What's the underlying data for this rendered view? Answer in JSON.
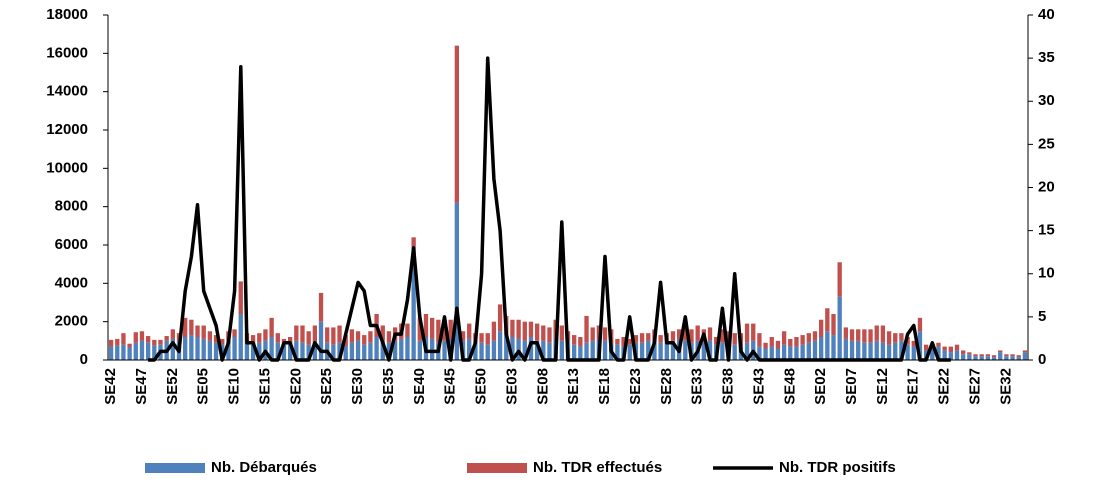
{
  "chart_data": {
    "type": "bar-line",
    "categories": [
      "SE42",
      null,
      null,
      null,
      null,
      "SE47",
      null,
      null,
      null,
      null,
      "SE52",
      null,
      null,
      null,
      null,
      "SE05",
      null,
      null,
      null,
      null,
      "SE10",
      null,
      null,
      null,
      null,
      "SE15",
      null,
      null,
      null,
      null,
      "SE20",
      null,
      null,
      null,
      null,
      "SE25",
      null,
      null,
      null,
      null,
      "SE30",
      null,
      null,
      null,
      null,
      "SE35",
      null,
      null,
      null,
      null,
      "SE40",
      null,
      null,
      null,
      null,
      "SE45",
      null,
      null,
      null,
      null,
      "SE50",
      null,
      null,
      null,
      null,
      "SE03",
      null,
      null,
      null,
      null,
      "SE08",
      null,
      null,
      null,
      null,
      "SE13",
      null,
      null,
      null,
      null,
      "SE18",
      null,
      null,
      null,
      null,
      "SE23",
      null,
      null,
      null,
      null,
      "SE28",
      null,
      null,
      null,
      null,
      "SE33",
      null,
      null,
      null,
      null,
      "SE38",
      null,
      null,
      null,
      null,
      "SE43",
      null,
      null,
      null,
      null,
      "SE48",
      null,
      null,
      null,
      null,
      "SE02",
      null,
      null,
      null,
      null,
      "SE07",
      null,
      null,
      null,
      null,
      "SE12",
      null,
      null,
      null,
      null,
      "SE17",
      null,
      null,
      null,
      null,
      "SE22",
      null,
      null,
      null,
      null,
      "SE27",
      null,
      null,
      null,
      null,
      "SE32",
      null,
      null,
      null
    ],
    "series": [
      {
        "name": "Nb. Débarqués",
        "color": "#4f81bd",
        "stack": true,
        "values": [
          700,
          750,
          800,
          650,
          900,
          1000,
          900,
          750,
          800,
          1000,
          1100,
          1000,
          1200,
          1300,
          1200,
          1100,
          1000,
          900,
          800,
          1000,
          1200,
          2400,
          900,
          800,
          900,
          1000,
          1200,
          900,
          800,
          800,
          1000,
          900,
          800,
          900,
          2000,
          900,
          800,
          900,
          700,
          900,
          1000,
          800,
          900,
          1200,
          1000,
          900,
          1000,
          1100,
          1200,
          5900,
          1000,
          1200,
          1100,
          900,
          1000,
          1100,
          8200,
          1000,
          1100,
          900,
          900,
          800,
          1000,
          1500,
          1300,
          1200,
          1100,
          1000,
          1200,
          1000,
          1000,
          900,
          1100,
          1000,
          1000,
          800,
          700,
          900,
          1000,
          1100,
          1000,
          900,
          800,
          700,
          800,
          900,
          900,
          1000,
          1000,
          900,
          900,
          1000,
          1100,
          1000,
          900,
          1000,
          900,
          1000,
          800,
          900,
          900,
          800,
          700,
          900,
          1000,
          700,
          600,
          700,
          600,
          800,
          700,
          700,
          800,
          900,
          1000,
          1200,
          1500,
          1300,
          3300,
          1100,
          1000,
          1000,
          900,
          900,
          1000,
          900,
          800,
          900,
          1000,
          800,
          700,
          1500,
          500,
          600,
          700,
          500,
          400,
          500,
          300,
          300,
          200,
          200,
          200,
          150,
          400,
          200,
          200,
          150,
          400
        ]
      },
      {
        "name": "Nb. TDR effectués",
        "color": "#c0504d",
        "stack": true,
        "values": [
          350,
          350,
          600,
          200,
          550,
          500,
          350,
          300,
          250,
          250,
          500,
          400,
          1000,
          800,
          600,
          700,
          500,
          400,
          300,
          500,
          400,
          1700,
          500,
          500,
          500,
          600,
          1000,
          500,
          300,
          400,
          800,
          900,
          700,
          900,
          1500,
          800,
          900,
          900,
          600,
          700,
          500,
          500,
          600,
          1200,
          800,
          600,
          700,
          800,
          700,
          500,
          1200,
          1200,
          1100,
          1200,
          900,
          1000,
          8200,
          500,
          800,
          500,
          500,
          600,
          1000,
          1400,
          1000,
          900,
          1000,
          1000,
          800,
          900,
          800,
          800,
          1000,
          800,
          500,
          500,
          500,
          1400,
          700,
          700,
          700,
          700,
          300,
          500,
          300,
          400,
          500,
          400,
          600,
          400,
          500,
          500,
          500,
          700,
          700,
          800,
          700,
          700,
          400,
          700,
          600,
          600,
          700,
          1000,
          900,
          700,
          300,
          500,
          400,
          700,
          400,
          500,
          500,
          500,
          500,
          900,
          1200,
          1100,
          1800,
          600,
          600,
          600,
          700,
          700,
          800,
          900,
          700,
          500,
          400,
          400,
          300,
          700,
          300,
          200,
          200,
          200,
          300,
          300,
          200,
          100,
          100,
          100,
          100,
          100,
          100,
          100,
          100,
          100,
          100
        ]
      },
      {
        "name": "Nb. TDR positifs",
        "color": "#000000",
        "axis": "y2",
        "type": "line",
        "values": [
          null,
          null,
          null,
          null,
          null,
          null,
          0,
          0,
          1,
          1,
          2,
          1,
          8,
          12,
          18,
          8,
          6,
          4,
          0,
          2,
          8,
          34,
          2,
          2,
          0,
          1,
          0,
          0,
          2,
          2,
          0,
          0,
          0,
          2,
          1,
          1,
          0,
          0,
          3,
          6,
          9,
          8,
          4,
          4,
          2,
          0,
          3,
          3,
          7,
          13,
          5,
          1,
          1,
          1,
          5,
          0,
          6,
          0,
          0,
          2,
          10,
          35,
          21,
          15,
          3,
          0,
          1,
          0,
          2,
          2,
          0,
          0,
          0,
          16,
          0,
          0,
          0,
          0,
          0,
          0,
          12,
          1,
          0,
          0,
          5,
          0,
          0,
          0,
          2,
          9,
          2,
          2,
          1,
          5,
          0,
          1,
          3,
          0,
          0,
          6,
          0,
          10,
          1,
          0,
          1,
          0,
          0,
          0,
          0,
          0,
          0,
          0,
          0,
          0,
          0,
          0,
          0,
          0,
          0,
          0,
          0,
          0,
          0,
          0,
          0,
          0,
          0,
          0,
          0,
          3,
          4,
          0,
          0,
          2,
          0,
          0,
          0,
          null,
          null,
          null,
          null,
          null,
          null,
          null,
          null,
          null,
          null,
          null,
          null
        ]
      }
    ],
    "ylim": [
      0,
      18000
    ],
    "yticks": [
      0,
      2000,
      4000,
      6000,
      8000,
      10000,
      12000,
      14000,
      16000,
      18000
    ],
    "y2lim": [
      0,
      40
    ],
    "y2ticks": [
      0,
      5,
      10,
      15,
      20,
      25,
      30,
      35,
      40
    ],
    "legend": "bottom"
  }
}
